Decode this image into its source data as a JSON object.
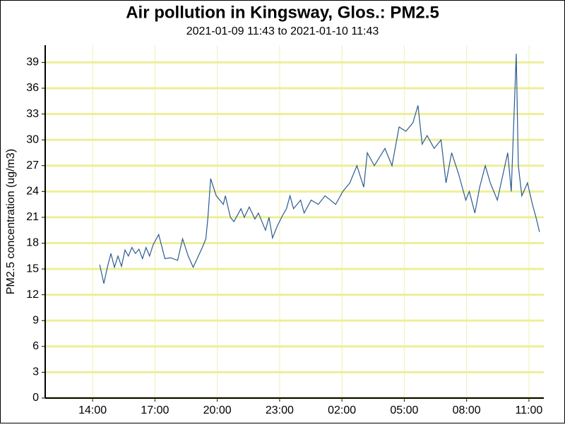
{
  "chart_data": {
    "type": "line",
    "title": "Air pollution in Kingsway, Glos.: PM2.5",
    "subtitle": "2021-01-09 11:43 to 2021-01-10 11:43",
    "ylabel": "PM2.5 concentration (ug/m3)",
    "x": [
      14.34,
      14.54,
      14.71,
      14.88,
      15.05,
      15.22,
      15.39,
      15.56,
      15.72,
      15.89,
      16.06,
      16.23,
      16.4,
      16.57,
      16.74,
      16.91,
      17.18,
      17.48,
      17.75,
      18.09,
      18.33,
      18.6,
      18.84,
      19.28,
      19.45,
      19.55,
      19.68,
      19.95,
      20.29,
      20.39,
      20.63,
      20.8,
      21.14,
      21.3,
      21.54,
      21.81,
      21.98,
      22.32,
      22.49,
      22.66,
      22.89,
      23.16,
      23.33,
      23.5,
      23.67,
      24.01,
      24.18,
      24.52,
      24.86,
      25.19,
      25.7,
      26.04,
      26.38,
      26.72,
      27.05,
      27.22,
      27.56,
      28.07,
      28.41,
      28.75,
      29.08,
      29.42,
      29.66,
      29.86,
      30.1,
      30.44,
      30.77,
      31.01,
      31.28,
      31.62,
      31.96,
      32.13,
      32.4,
      32.63,
      32.9,
      33.14,
      33.48,
      33.98,
      34.15,
      34.39,
      34.49,
      34.66,
      34.93,
      35.17,
      35.34,
      35.51
    ],
    "series": [
      {
        "name": "PM2.5",
        "color": "#2b5b91",
        "values": [
          15.5,
          13.3,
          15.2,
          16.8,
          15.2,
          16.5,
          15.3,
          17.2,
          16.5,
          17.5,
          16.8,
          17.3,
          16.2,
          17.5,
          16.5,
          17.8,
          19,
          16.2,
          16.3,
          16,
          18.5,
          16.5,
          15.2,
          17.5,
          18.5,
          21,
          25.5,
          23.5,
          22.5,
          23.5,
          21,
          20.5,
          22,
          21,
          22.2,
          20.8,
          21.5,
          19.5,
          21,
          18.6,
          20,
          21.3,
          22,
          23.5,
          22,
          23,
          21.5,
          23,
          22.5,
          23.5,
          22.5,
          24,
          25,
          27,
          24.5,
          28.5,
          27,
          29,
          27,
          31.5,
          31,
          32,
          34,
          29.5,
          30.5,
          29,
          30,
          25,
          28.5,
          26,
          23,
          24,
          21.5,
          24.5,
          27,
          25,
          23,
          28.5,
          24,
          40,
          27,
          23.5,
          25,
          22.5,
          21,
          19.3
        ]
      }
    ],
    "xlim": [
      11.717,
      35.717
    ],
    "xticks": [
      {
        "value": 14,
        "label": "14:00"
      },
      {
        "value": 17,
        "label": "17:00"
      },
      {
        "value": 20,
        "label": "20:00"
      },
      {
        "value": 23,
        "label": "23:00"
      },
      {
        "value": 26,
        "label": "02:00"
      },
      {
        "value": 29,
        "label": "05:00"
      },
      {
        "value": 32,
        "label": "08:00"
      },
      {
        "value": 35,
        "label": "11:00"
      }
    ],
    "ylim": [
      0,
      41
    ],
    "yticks": [
      0,
      3,
      6,
      9,
      12,
      15,
      18,
      21,
      24,
      27,
      30,
      33,
      36,
      39
    ],
    "grid": true
  }
}
